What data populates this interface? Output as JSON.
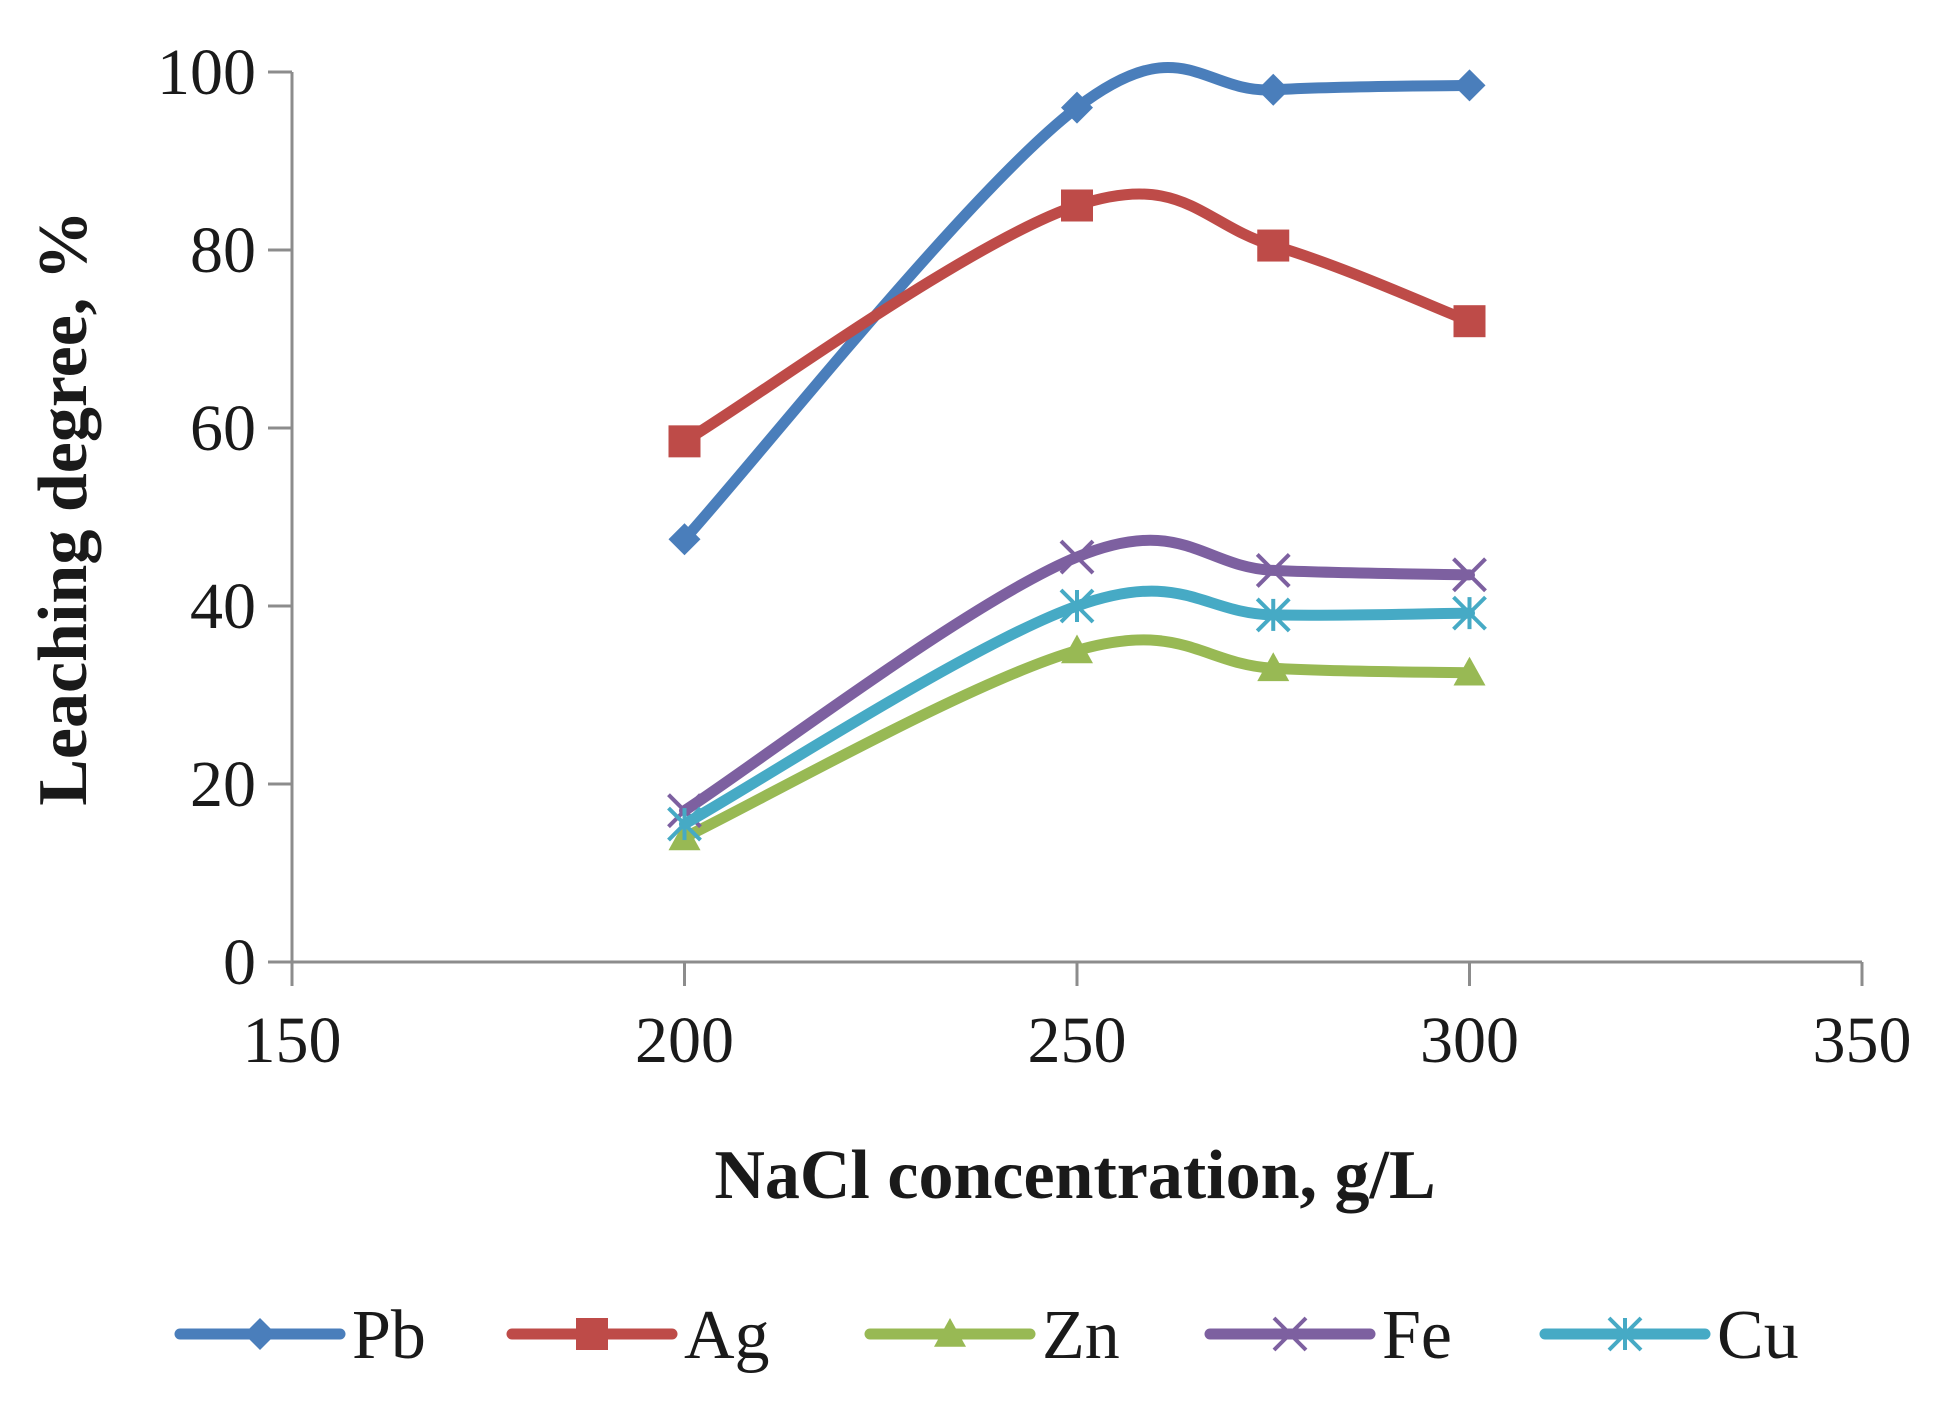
{
  "chart_data": {
    "type": "line",
    "title": "",
    "xlabel": "NaCl concentration, g/L",
    "ylabel": "Leaching degree, %",
    "xlim": [
      150,
      350
    ],
    "ylim": [
      0,
      100
    ],
    "xticks": [
      150,
      200,
      250,
      300,
      350
    ],
    "yticks": [
      0,
      20,
      40,
      60,
      80,
      100
    ],
    "x": [
      200,
      250,
      275,
      300
    ],
    "grid": false,
    "legend_position": "bottom",
    "smoothed": true,
    "series": [
      {
        "name": "Pb",
        "values": [
          47.5,
          96,
          98,
          98.5
        ],
        "color": "#4a7ebb",
        "marker": "diamond"
      },
      {
        "name": "Ag",
        "values": [
          58.5,
          85,
          80.5,
          72
        ],
        "color": "#be4b48",
        "marker": "square"
      },
      {
        "name": "Zn",
        "values": [
          14,
          35,
          33,
          32.5
        ],
        "color": "#98b954",
        "marker": "triangle"
      },
      {
        "name": "Fe",
        "values": [
          17,
          45.5,
          44,
          43.5
        ],
        "color": "#7d60a0",
        "marker": "x"
      },
      {
        "name": "Cu",
        "values": [
          15.5,
          40,
          39,
          39.2
        ],
        "color": "#46aac5",
        "marker": "star"
      }
    ]
  }
}
